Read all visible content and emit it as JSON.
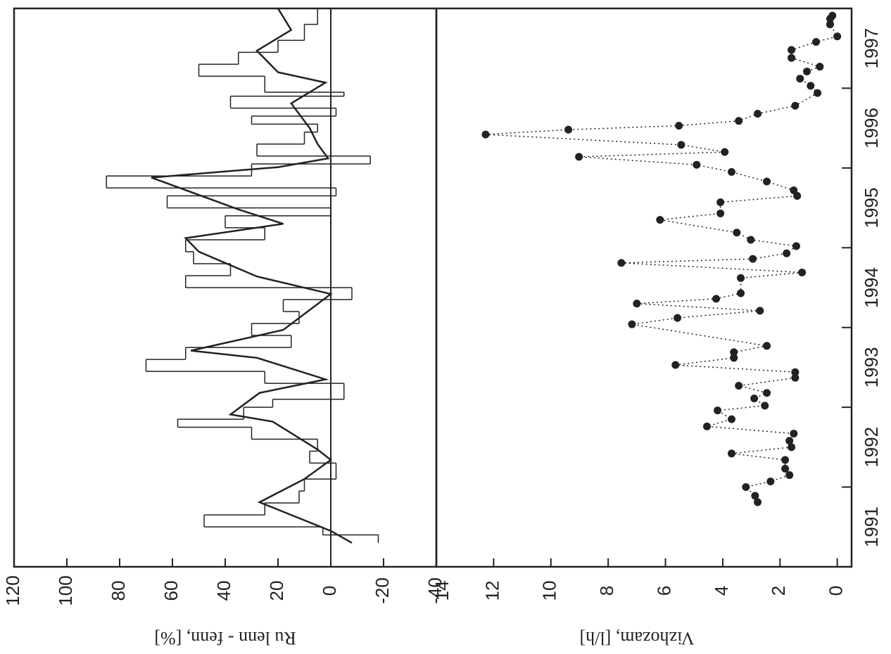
{
  "chart_data": [
    {
      "type": "line",
      "ylabel": "Ru lenn - fenn, [%]",
      "ylim": [
        -40,
        120
      ],
      "yticks": [
        120,
        100,
        80,
        60,
        40,
        20,
        0,
        -20,
        -40
      ],
      "xlim": [
        1991,
        1998
      ],
      "zero_line": true,
      "series": [
        {
          "style": "step",
          "color": "#222",
          "x": [
            1991.3,
            1991.4,
            1991.5,
            1991.65,
            1991.8,
            1991.95,
            1992.1,
            1992.3,
            1992.45,
            1992.6,
            1992.75,
            1992.85,
            1993.0,
            1993.1,
            1993.3,
            1993.45,
            1993.6,
            1993.75,
            1993.9,
            1994.05,
            1994.2,
            1994.35,
            1994.5,
            1994.65,
            1994.8,
            1994.95,
            1995.1,
            1995.25,
            1995.4,
            1995.5,
            1995.65,
            1995.75,
            1995.9,
            1996.05,
            1996.15,
            1996.3,
            1996.45,
            1996.55,
            1996.65,
            1996.75,
            1996.9,
            1996.95,
            1997.15,
            1997.3,
            1997.45,
            1997.6,
            1997.8
          ],
          "values": [
            -18,
            3,
            48,
            25,
            12,
            10,
            -2,
            8,
            5,
            30,
            58,
            33,
            22,
            -5,
            25,
            70,
            55,
            15,
            30,
            12,
            18,
            -8,
            55,
            38,
            52,
            55,
            25,
            40,
            0,
            62,
            -2,
            85,
            30,
            -15,
            28,
            10,
            5,
            30,
            -2,
            38,
            -5,
            25,
            50,
            35,
            20,
            10,
            5
          ]
        },
        {
          "style": "line",
          "color": "#222",
          "x": [
            1991.3,
            1991.45,
            1991.81,
            1992.1,
            1992.34,
            1992.47,
            1992.82,
            1992.91,
            1993.18,
            1993.35,
            1993.62,
            1993.71,
            1993.97,
            1994.42,
            1994.64,
            1994.95,
            1995.12,
            1995.3,
            1995.48,
            1995.88,
            1996.01,
            1996.12,
            1996.3,
            1996.5,
            1996.81,
            1997.07,
            1997.2,
            1997.47,
            1997.73,
            1998.0
          ],
          "values": [
            -8,
            0,
            27,
            10,
            0,
            5,
            22,
            38,
            27,
            2,
            28,
            53,
            18,
            0,
            28,
            50,
            55,
            18,
            35,
            68,
            20,
            1,
            5,
            8,
            15,
            2,
            20,
            28,
            15,
            20
          ]
        }
      ]
    },
    {
      "type": "scatter",
      "ylabel": "Vizhozam, [l/h]",
      "ylim": [
        -0.5,
        14
      ],
      "yticks": [
        14,
        12,
        10,
        8,
        6,
        4,
        2,
        0
      ],
      "xlim": [
        1991,
        1998
      ],
      "xticks": [
        1992,
        1993,
        1994,
        1995,
        1996,
        1997
      ],
      "xlabels": [
        {
          "value": 1991.5,
          "label": "1991"
        },
        {
          "value": 1992.5,
          "label": "1992"
        },
        {
          "value": 1993.5,
          "label": "1993"
        },
        {
          "value": 1994.5,
          "label": "1994"
        },
        {
          "value": 1995.5,
          "label": "1995"
        },
        {
          "value": 1996.5,
          "label": "1996"
        },
        {
          "value": 1997.5,
          "label": "1997"
        }
      ],
      "color": "#222",
      "connect": "dotted",
      "x": [
        1991.81,
        1991.89,
        1992.0,
        1992.07,
        1992.15,
        1992.23,
        1992.34,
        1992.42,
        1992.5,
        1992.58,
        1992.67,
        1992.76,
        1992.85,
        1992.96,
        1993.02,
        1993.11,
        1993.18,
        1993.27,
        1993.37,
        1993.44,
        1993.53,
        1993.62,
        1993.69,
        1993.77,
        1994.04,
        1994.12,
        1994.21,
        1994.3,
        1994.36,
        1994.43,
        1994.62,
        1994.69,
        1994.81,
        1994.86,
        1994.93,
        1995.02,
        1995.1,
        1995.19,
        1995.35,
        1995.43,
        1995.57,
        1995.65,
        1995.72,
        1995.83,
        1995.95,
        1996.04,
        1996.14,
        1996.2,
        1996.29,
        1996.42,
        1996.48,
        1996.53,
        1996.59,
        1996.68,
        1996.78,
        1996.94,
        1997.03,
        1997.12,
        1997.21,
        1997.27,
        1997.38,
        1997.48,
        1997.58,
        1997.65,
        1997.8,
        1997.87,
        1997.91
      ],
      "values": [
        2.78,
        2.87,
        3.19,
        2.33,
        1.67,
        1.82,
        1.82,
        3.69,
        1.6,
        1.67,
        1.52,
        4.55,
        3.69,
        4.18,
        2.53,
        2.9,
        2.46,
        3.44,
        1.47,
        1.47,
        5.65,
        3.61,
        3.61,
        2.46,
        7.17,
        5.58,
        2.7,
        7.0,
        4.23,
        3.37,
        3.37,
        1.23,
        7.54,
        2.95,
        1.77,
        1.43,
        3.02,
        3.51,
        6.19,
        4.08,
        4.08,
        1.4,
        1.52,
        2.46,
        3.69,
        4.91,
        9.02,
        3.93,
        5.45,
        12.28,
        9.39,
        5.53,
        3.44,
        2.78,
        1.47,
        0.69,
        0.93,
        1.3,
        1.06,
        0.61,
        1.6,
        1.6,
        0.74,
        0,
        0.25,
        0.25,
        0.17
      ]
    }
  ]
}
